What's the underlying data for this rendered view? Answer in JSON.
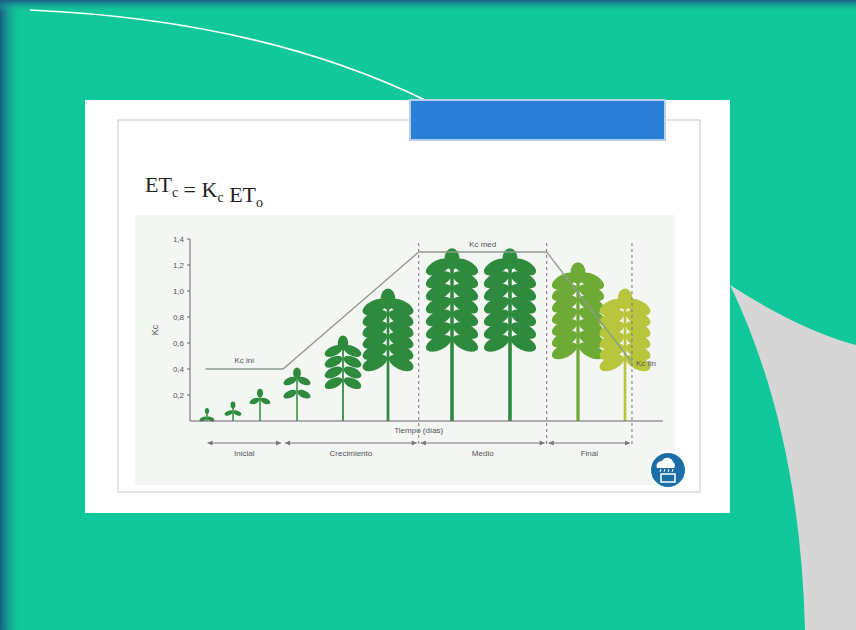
{
  "chart_data": {
    "type": "line",
    "title": "ETc = Kc ETo",
    "y_label": "Kc",
    "x_label": "Tiempo (días)",
    "x": [
      0,
      20,
      55,
      88,
      110
    ],
    "xlim": [
      -4,
      118
    ],
    "ylim": [
      0,
      1.4
    ],
    "yticks": [
      {
        "value": 0.2,
        "label": "0,2"
      },
      {
        "value": 0.4,
        "label": "0,4"
      },
      {
        "value": 0.6,
        "label": "0,6"
      },
      {
        "value": 0.8,
        "label": "0,8"
      },
      {
        "value": 1.0,
        "label": "1,0"
      },
      {
        "value": 1.2,
        "label": "1,2"
      },
      {
        "value": 1.4,
        "label": "1,4"
      }
    ],
    "tick_labels": "y",
    "grid": false,
    "series": [
      {
        "name": "Kc",
        "color": "#8c9c8c",
        "values": [
          0.4,
          0.4,
          1.3,
          1.3,
          0.45
        ]
      }
    ],
    "annotations": [
      {
        "text": "Kc ini"
      },
      {
        "text": "Kc med"
      },
      {
        "text": "Kc fin"
      }
    ],
    "stages": [
      {
        "label": "Inicial",
        "start": 0,
        "end": 20
      },
      {
        "label": "Crecimiento",
        "start": 20,
        "end": 55
      },
      {
        "label": "Medio",
        "start": 55,
        "end": 88
      },
      {
        "label": "Final",
        "start": 88,
        "end": 110
      }
    ]
  }
}
